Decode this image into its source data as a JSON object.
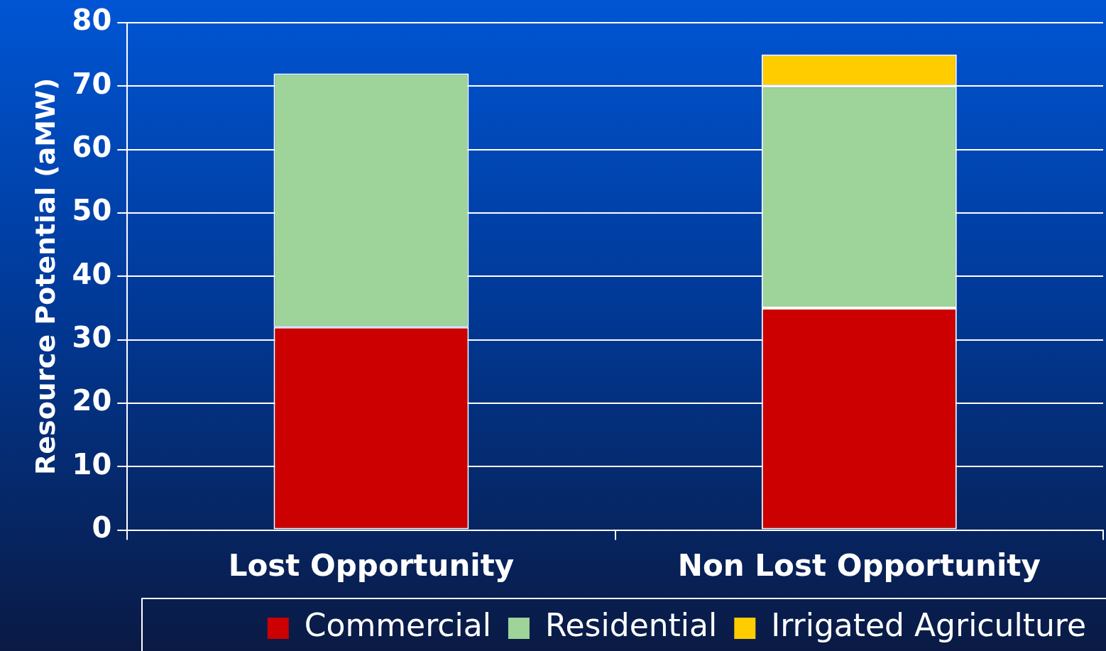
{
  "chart_data": {
    "type": "bar",
    "stacked": true,
    "ylabel": "Resource Potential (aMW)",
    "categories": [
      "Lost Opportunity",
      "Non Lost Opportunity"
    ],
    "series": [
      {
        "name": "Commercial",
        "color": "#cc0000",
        "values": [
          32,
          35
        ]
      },
      {
        "name": "Residential",
        "color": "#9ed49a",
        "values": [
          40,
          35
        ]
      },
      {
        "name": "Irrigated Agriculture",
        "color": "#ffcc00",
        "values": [
          0,
          5
        ]
      }
    ],
    "ylim": [
      0,
      80
    ],
    "yticks": [
      0,
      10,
      20,
      30,
      40,
      50,
      60,
      70,
      80
    ],
    "grid": "y",
    "legend": "bottom"
  }
}
